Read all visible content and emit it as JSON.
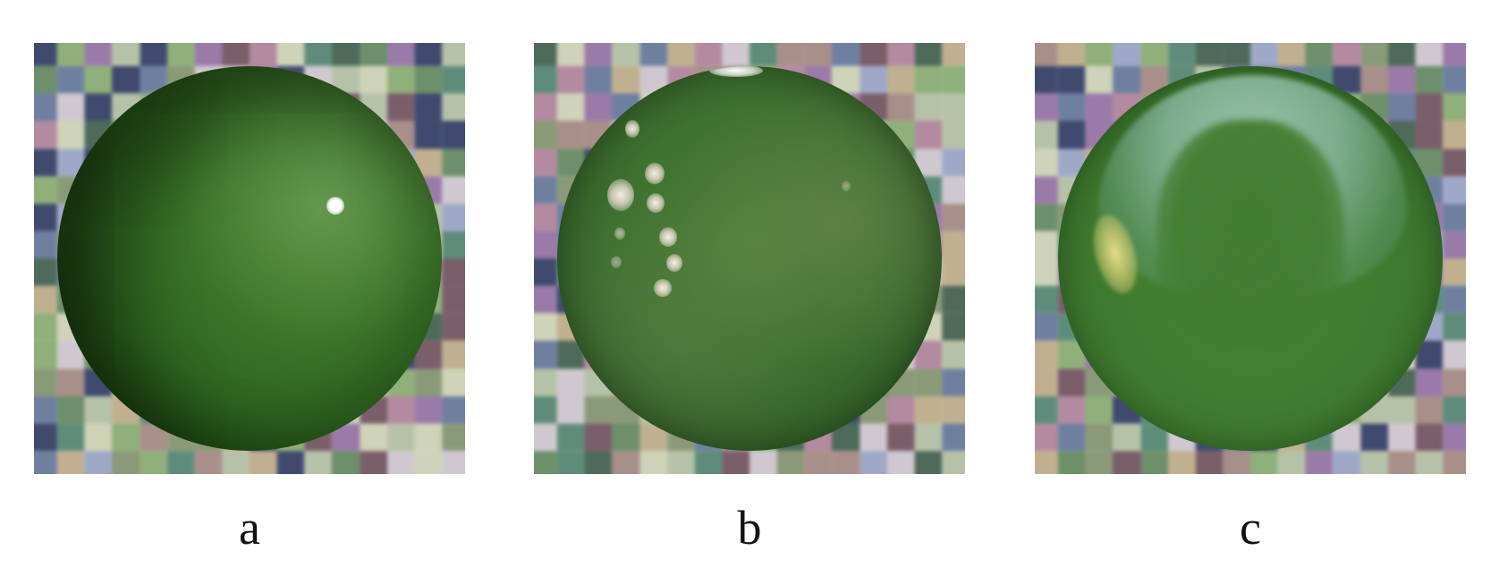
{
  "panels": [
    {
      "id": "a",
      "caption": "a",
      "description_icon": "sphere-point-light"
    },
    {
      "id": "b",
      "caption": "b",
      "description_icon": "sphere-window-reflection"
    },
    {
      "id": "c",
      "caption": "c",
      "description_icon": "sphere-sky-reflection"
    }
  ],
  "colors": {
    "sphere_green": "#3f7a2a",
    "background": "#ffffff",
    "caption_text": "#111111",
    "checker_palette": [
      "#8a9a78",
      "#9a7aa8",
      "#6f7fa0",
      "#b6c2a8",
      "#5f8c7a",
      "#a98f8a",
      "#cfd3b8",
      "#3f4a6e",
      "#8fb07a",
      "#b48aa0",
      "#6d8f6a",
      "#c0b090",
      "#4e6a5a",
      "#a0a8c8",
      "#7a5e6a",
      "#d0c8d0"
    ]
  }
}
